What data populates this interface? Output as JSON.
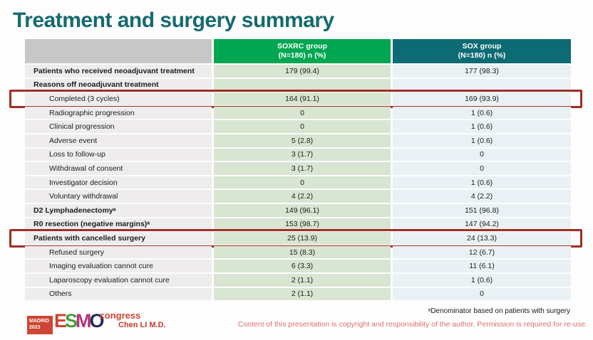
{
  "colors": {
    "title-color": "#156b6f",
    "header-soxrc-bg": "#00a651",
    "header-sox-bg": "#0d6b74",
    "header-label-bg": "#c7c7c7",
    "col-label-bg": "#eeecec",
    "col-soxrc-bg": "#d8e5d1",
    "col-sox-bg": "#eaf1f4",
    "highlight-border": "#9e2f25",
    "logo-red": "#cf4433",
    "logo-green": "#4a9e3f",
    "logo-magenta": "#b5337f",
    "logo-navy": "#1b2f5e",
    "author-color": "#c23a2e",
    "copyright-color": "#dd7070"
  },
  "slide": {
    "title": "Treatment and surgery summary"
  },
  "table": {
    "columns": [
      {
        "line1": "SOXRC group",
        "line2": "(N=180)  n (%)"
      },
      {
        "line1": "SOX group",
        "line2": "(N=180)  n (%)"
      }
    ],
    "rows": [
      {
        "label": "Patients who received neoadjuvant treatment",
        "soxrc": "179 (99.4)",
        "sox": "177 (98.3)",
        "style": "bold",
        "highlight": false
      },
      {
        "label": "Reasons off neoadjuvant treatment",
        "soxrc": "",
        "sox": "",
        "style": "bold",
        "highlight": false
      },
      {
        "label": "Completed (3 cycles)",
        "soxrc": "164 (91.1)",
        "sox": "169 (93.9)",
        "style": "indent",
        "highlight": true
      },
      {
        "label": "Radiographic progression",
        "soxrc": "0",
        "sox": "1 (0.6)",
        "style": "indent",
        "highlight": false
      },
      {
        "label": "Clinical progression",
        "soxrc": "0",
        "sox": "1 (0.6)",
        "style": "indent",
        "highlight": false
      },
      {
        "label": "Adverse event",
        "soxrc": "5 (2.8)",
        "sox": "1 (0.6)",
        "style": "indent",
        "highlight": false
      },
      {
        "label": "Loss to follow-up",
        "soxrc": "3 (1.7)",
        "sox": "0",
        "style": "indent",
        "highlight": false
      },
      {
        "label": "Withdrawal of consent",
        "soxrc": "3 (1.7)",
        "sox": "0",
        "style": "indent",
        "highlight": false
      },
      {
        "label": "Investigator decision",
        "soxrc": "0",
        "sox": "1 (0.6)",
        "style": "indent",
        "highlight": false
      },
      {
        "label": "Voluntary withdrawal",
        "soxrc": "4 (2.2)",
        "sox": "4 (2.2)",
        "style": "indent",
        "highlight": false
      },
      {
        "label": "D2 Lymphadenectomyᵃ",
        "soxrc": "149 (96.1)",
        "sox": "151 (96.8)",
        "style": "bold",
        "highlight": false
      },
      {
        "label": "R0 resection (negative margins)ᵃ",
        "soxrc": "153 (98.7)",
        "sox": "147 (94.2)",
        "style": "bold",
        "highlight": false
      },
      {
        "label": "Patients with cancelled surgery",
        "soxrc": "25 (13.9)",
        "sox": "24 (13.3)",
        "style": "bold",
        "highlight": true
      },
      {
        "label": "Refused surgery",
        "soxrc": "15 (8.3)",
        "sox": "12 (6.7)",
        "style": "indent",
        "highlight": false
      },
      {
        "label": "Imaging evaluation cannot cure",
        "soxrc": "6 (3.3)",
        "sox": "11 (6.1)",
        "style": "indent",
        "highlight": false
      },
      {
        "label": "Laparoscopy evaluation cannot cure",
        "soxrc": "2 (1.1)",
        "sox": "1 (0.6)",
        "style": "indent",
        "highlight": false
      },
      {
        "label": "Others",
        "soxrc": "2 (1.1)",
        "sox": "0",
        "style": "indent",
        "highlight": false
      }
    ]
  },
  "footer": {
    "logo": {
      "badge_line1": "MADRID",
      "badge_line2": "2023",
      "letter_e": "E",
      "letter_s": "S",
      "letter_m": "M",
      "letter_o": "O",
      "congress": "congress"
    },
    "author": "Chen LI M.D.",
    "footnote": "ᵃDenominator based on patients with surgery",
    "copyright": "Content of this presentation is copyright and responsibility of the author. Permission is required for re-use."
  }
}
